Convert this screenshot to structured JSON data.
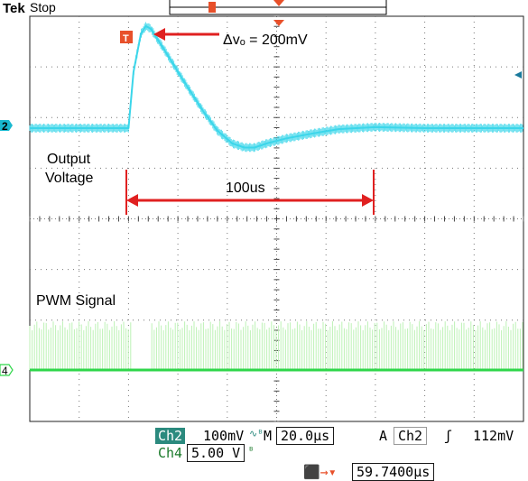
{
  "colors": {
    "ch2": "#3bd6ea",
    "ch4": "#2fd64a",
    "pwm_bg": "#bdf2b6",
    "grid": "#777777",
    "trigger_marker": "#e8502a",
    "annotation": "#e02020",
    "readout_label_bg": "#2b8a7e"
  },
  "header": {
    "brand": "Tek",
    "state": "Stop"
  },
  "markers": {
    "ch2_marker": "2",
    "ch4_marker": "4",
    "trigger_flag": "T"
  },
  "readout": {
    "ch2_label": "Ch2",
    "ch2_scale": "100mV",
    "ch4_label": "Ch4",
    "ch4_scale": "5.00 V",
    "timebase_label": "M",
    "timebase": "20.0µs",
    "trigger_mode": "A",
    "trigger_channel": "Ch2",
    "trigger_level": "112mV",
    "trigger_position": "59.7400µs"
  },
  "chart_data": {
    "type": "line",
    "instrument": "oscilloscope",
    "xunit": "µs",
    "xdiv": 20,
    "xlim": [
      0,
      200
    ],
    "grid": true,
    "divisions": {
      "x": 10,
      "y": 8
    },
    "annotations": {
      "overshoot": "Δvₒ = 200mV",
      "duration": "100us",
      "output_label": "Output\nVoltage",
      "pwm_label": "PWM Signal"
    },
    "series": [
      {
        "name": "Output Voltage",
        "channel": "Ch2",
        "unit": "mV",
        "baseline": 0,
        "points": [
          [
            0,
            0
          ],
          [
            40,
            0
          ],
          [
            42,
            110
          ],
          [
            45,
            185
          ],
          [
            47,
            200
          ],
          [
            49,
            195
          ],
          [
            55,
            150
          ],
          [
            62,
            95
          ],
          [
            70,
            35
          ],
          [
            76,
            -5
          ],
          [
            82,
            -30
          ],
          [
            87,
            -38
          ],
          [
            91,
            -38
          ],
          [
            96,
            -30
          ],
          [
            104,
            -20
          ],
          [
            115,
            -10
          ],
          [
            125,
            -2
          ],
          [
            140,
            2
          ],
          [
            160,
            0
          ],
          [
            200,
            0
          ]
        ]
      },
      {
        "name": "PWM Signal",
        "channel": "Ch4",
        "unit": "V",
        "high": 5,
        "low": 0,
        "gaps_us": [
          [
            41,
            48.5
          ]
        ]
      }
    ]
  }
}
